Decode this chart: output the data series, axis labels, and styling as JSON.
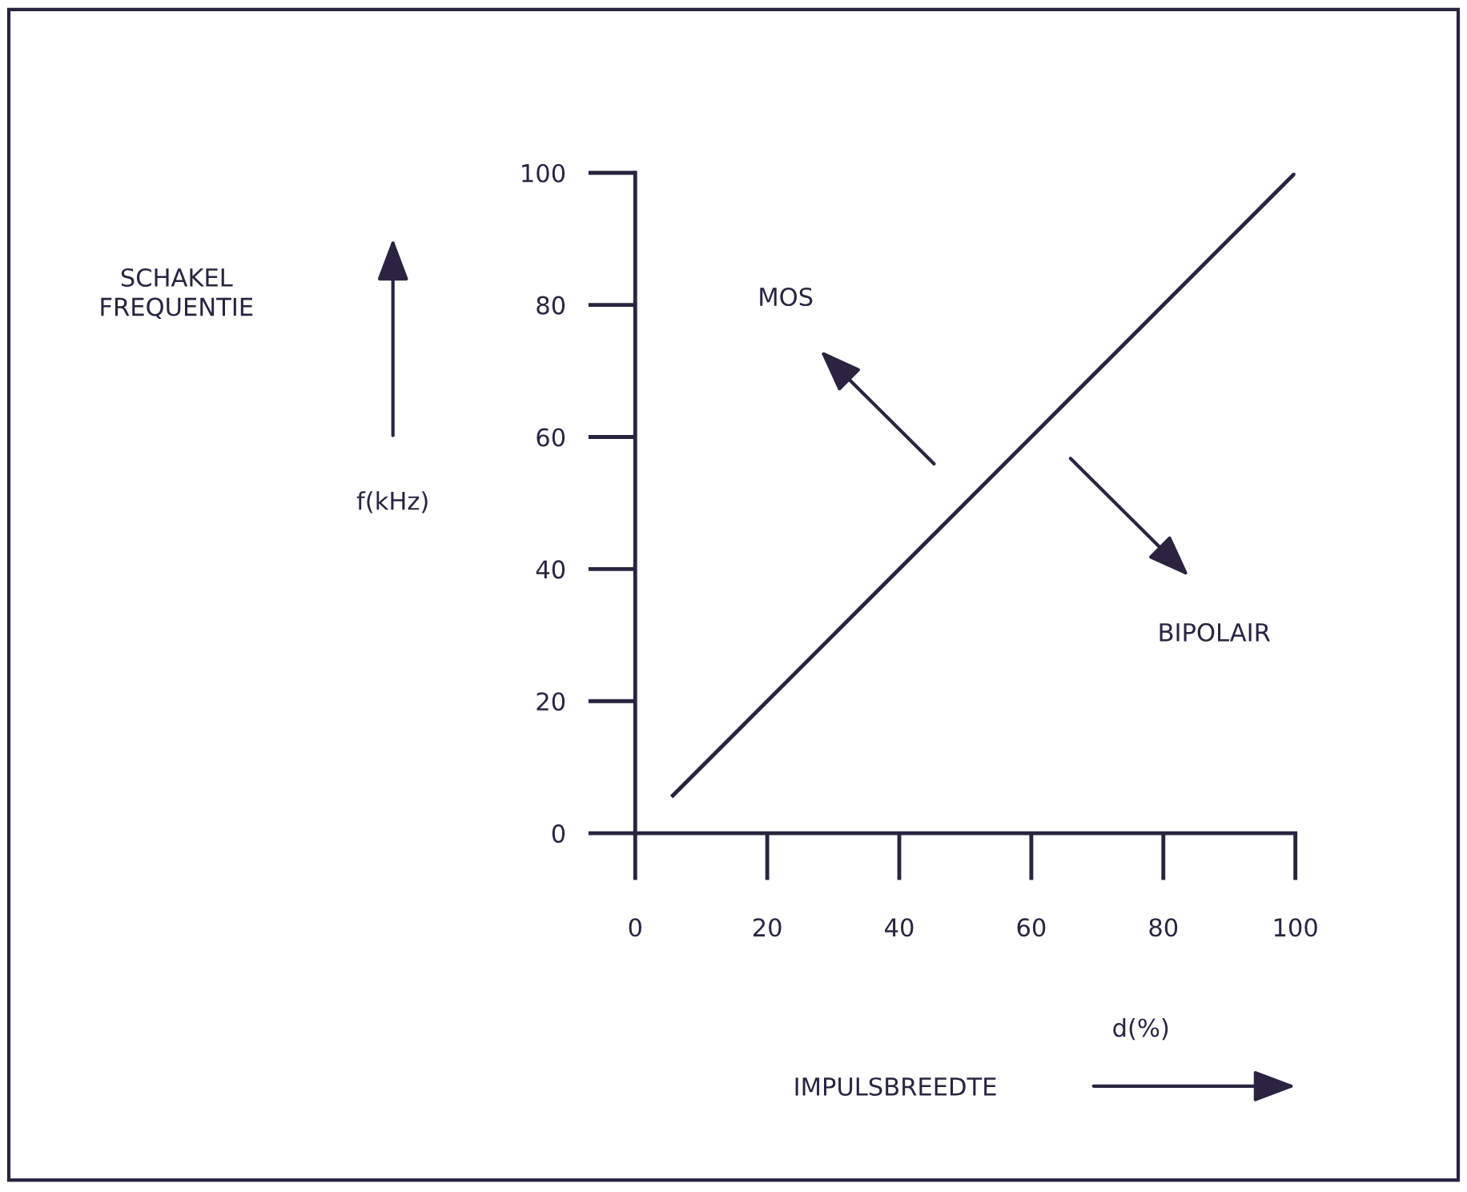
{
  "chart_data": {
    "type": "line",
    "xlabel": "d(%)",
    "ylabel": "f(kHz)",
    "x": [
      5.5,
      100
    ],
    "values": [
      5.5,
      100
    ],
    "color": "#2a2440",
    "xlim": [
      0,
      100
    ],
    "ylim": [
      0,
      100
    ],
    "xticks": [
      0,
      20,
      40,
      60,
      80,
      100
    ],
    "yticks": [
      0,
      20,
      40,
      60,
      80,
      100
    ],
    "grid": false,
    "legend": false,
    "marker": "none",
    "line_style": "solid",
    "annotations": [
      "SCHAKEL\nFREQUENTIE",
      "IMPULSBREEDTE",
      "MOS",
      "BIPOLAIR"
    ]
  }
}
